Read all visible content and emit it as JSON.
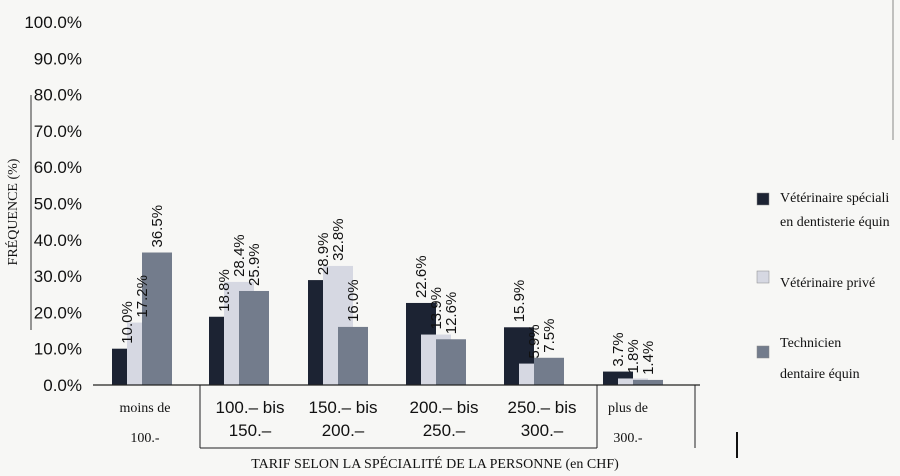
{
  "chart_data": {
    "type": "bar",
    "xlabel": "TARIF SELON LA SPÉCIALITÉ DE LA PERSONNE (en CHF)",
    "ylabel": "FRÉQUENCE (%)",
    "ylim": [
      0,
      100
    ],
    "yticks": [
      "100.0%",
      "90.0%",
      "80.0%",
      "70.0%",
      "60.0%",
      "50.0%",
      "40.0%",
      "30.0%",
      "20.0%",
      "10.0%",
      "0.0%"
    ],
    "categories": [
      {
        "line1": "moins de",
        "line2": "100.-"
      },
      {
        "line1": "100.– bis",
        "line2": "150.–"
      },
      {
        "line1": "150.– bis",
        "line2": "200.–"
      },
      {
        "line1": "200.– bis",
        "line2": "250.–"
      },
      {
        "line1": "250.– bis",
        "line2": "300.–"
      },
      {
        "line1": "plus de",
        "line2": "300.-"
      }
    ],
    "series": [
      {
        "name": "Vétérinaire spécialisé en dentisterie équine",
        "legend_lines": [
          "Vétérinaire spéciali",
          "en dentisterie équin"
        ],
        "color": "#1c2333",
        "values": [
          10.0,
          18.8,
          28.9,
          22.6,
          15.9,
          3.7
        ],
        "labels": [
          "10.0%",
          "18.8%",
          "28.9%",
          "22.6%",
          "15.9%",
          "3.7%"
        ]
      },
      {
        "name": "Vétérinaire privé",
        "legend_lines": [
          "Vétérinaire privé"
        ],
        "color": "#d6d8e2",
        "values": [
          17.2,
          28.4,
          32.8,
          13.9,
          5.9,
          1.8
        ],
        "labels": [
          "17.2%",
          "28.4%",
          "32.8%",
          "13.9%",
          "5.9%",
          "1.8%"
        ]
      },
      {
        "name": "Technicien dentaire équin",
        "legend_lines": [
          "Technicien",
          "dentaire équin"
        ],
        "color": "#737c8c",
        "values": [
          36.5,
          25.9,
          16.0,
          12.6,
          7.5,
          1.4
        ],
        "labels": [
          "36.5%",
          "25.9%",
          "16.0%",
          "12.6%",
          "7.5%",
          "1.4%"
        ]
      }
    ],
    "legend_position": "right",
    "grid": false
  }
}
